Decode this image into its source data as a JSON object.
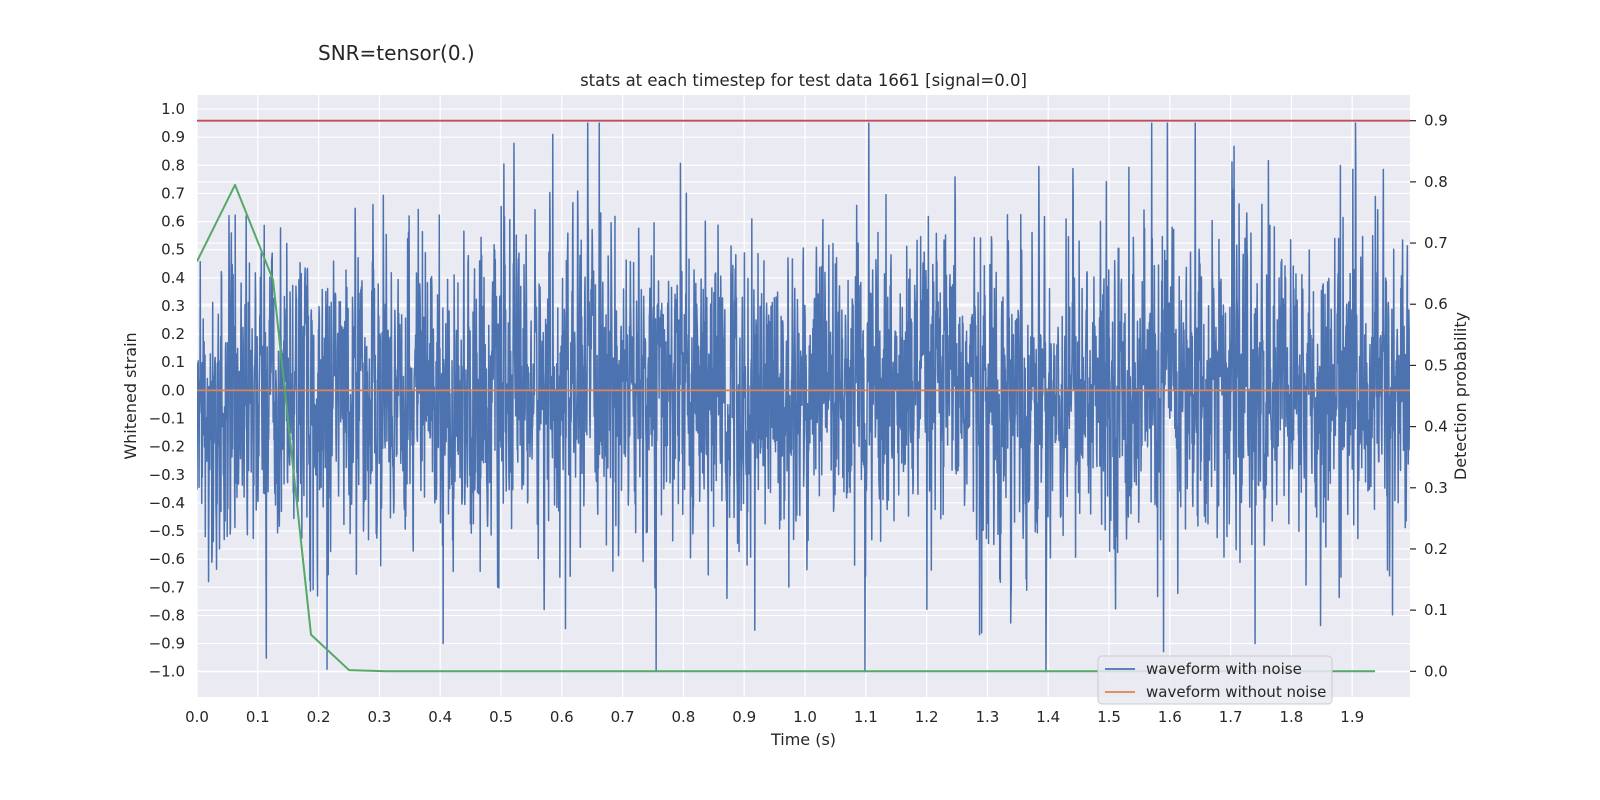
{
  "chart_data": {
    "type": "line",
    "suptitle": "SNR=tensor(0.)",
    "title": "stats at each timestep for test data 1661 [signal=0.0]",
    "xlabel": "Time (s)",
    "ylabel_left": "Whitened strain",
    "ylabel_right": "Detection probability",
    "xlim": [
      0.0,
      1.995
    ],
    "ylim_left": [
      -1.09,
      1.05
    ],
    "ylim_right": [
      -0.042,
      0.942
    ],
    "x_ticks": [
      0.0,
      0.1,
      0.2,
      0.3,
      0.4,
      0.5,
      0.6,
      0.7,
      0.8,
      0.9,
      1.0,
      1.1,
      1.2,
      1.3,
      1.4,
      1.5,
      1.6,
      1.7,
      1.8,
      1.9
    ],
    "x_tick_labels": [
      "0.0",
      "0.1",
      "0.2",
      "0.3",
      "0.4",
      "0.5",
      "0.6",
      "0.7",
      "0.8",
      "0.9",
      "1.0",
      "1.1",
      "1.2",
      "1.3",
      "1.4",
      "1.5",
      "1.6",
      "1.7",
      "1.8",
      "1.9"
    ],
    "y_ticks_left": [
      1.0,
      0.9,
      0.8,
      0.7,
      0.6,
      0.5,
      0.4,
      0.3,
      0.2,
      0.1,
      0.0,
      -0.1,
      -0.2,
      -0.3,
      -0.4,
      -0.5,
      -0.6,
      -0.7,
      -0.8,
      -0.9,
      -1.0
    ],
    "y_tick_labels_left": [
      "1.0",
      "0.9",
      "0.8",
      "0.7",
      "0.6",
      "0.5",
      "0.4",
      "0.3",
      "0.2",
      "0.1",
      "0.0",
      "−0.1",
      "−0.2",
      "−0.3",
      "−0.4",
      "−0.5",
      "−0.6",
      "−0.7",
      "−0.8",
      "−0.9",
      "−1.0"
    ],
    "y_ticks_right": [
      0.9,
      0.8,
      0.7,
      0.6,
      0.5,
      0.4,
      0.3,
      0.2,
      0.1,
      0.0
    ],
    "y_tick_labels_right": [
      "0.9",
      "0.8",
      "0.7",
      "0.6",
      "0.5",
      "0.4",
      "0.3",
      "0.2",
      "0.1",
      "0.0"
    ],
    "series": [
      {
        "name": "waveform with noise",
        "color": "#4c72b0",
        "axis": "left",
        "description": "dense noisy whitened strain samples, approx. uniform time sampling over [0, 1.995]",
        "sample_count": 4096,
        "envelope_approx": [
          -1.0,
          0.95
        ],
        "notable_extremes": [
          {
            "x": 0.585,
            "y": 0.91
          },
          {
            "x": 1.105,
            "y": 0.95
          },
          {
            "x": 0.755,
            "y": -1.0
          },
          {
            "x": 1.74,
            "y": -0.9
          },
          {
            "x": 0.405,
            "y": -0.9
          }
        ]
      },
      {
        "name": "waveform without noise",
        "color": "#dd8452",
        "axis": "left",
        "x": [
          0.0,
          1.995
        ],
        "y": [
          0.0,
          0.0
        ]
      },
      {
        "name": "detection probability",
        "color": "#55a868",
        "axis": "right",
        "legend": false,
        "x": [
          0.0,
          0.0625,
          0.125,
          0.1875,
          0.25,
          0.3125,
          1.9375
        ],
        "y": [
          0.67,
          0.795,
          0.64,
          0.06,
          0.002,
          0.0,
          0.0
        ]
      },
      {
        "name": "threshold",
        "color": "#c44e52",
        "axis": "right",
        "legend": false,
        "y": 0.9
      }
    ],
    "legend": {
      "location": "lower right",
      "entries": [
        {
          "label": "waveform with noise",
          "color": "#4c72b0"
        },
        {
          "label": "waveform without noise",
          "color": "#dd8452"
        }
      ]
    },
    "grid": true,
    "style": {
      "axes_facecolor": "#eaeaf2",
      "grid_color": "#ffffff"
    }
  }
}
